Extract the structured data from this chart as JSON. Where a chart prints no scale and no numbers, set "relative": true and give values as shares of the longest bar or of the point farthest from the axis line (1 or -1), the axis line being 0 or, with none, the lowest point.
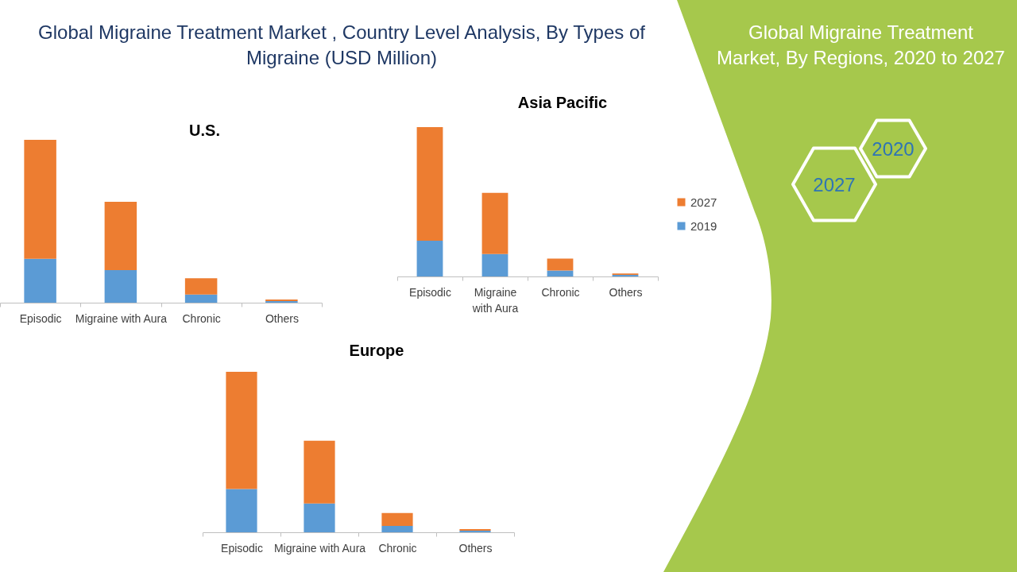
{
  "chart_data": [
    {
      "type": "other",
      "title": "Global Migraine Treatment Market , Country Level Analysis, By Types of Migraine (USD Million)"
    },
    {
      "type": "bar",
      "title": "U.S.",
      "categories": [
        "Episodic",
        "Migraine with Aura",
        "Chronic",
        "Others"
      ],
      "stacked": true,
      "relative": true,
      "series": [
        {
          "color": "#5b9bd5",
          "values": [
            0.27,
            0.2,
            0.05,
            0.01
          ]
        },
        {
          "color": "#ed7d31",
          "values": [
            0.73,
            0.42,
            0.1,
            0.01
          ]
        }
      ]
    },
    {
      "type": "bar",
      "title": "Asia Pacific",
      "categories": [
        "Episodic",
        "Migraine with Aura",
        "Chronic",
        "Others"
      ],
      "stacked": true,
      "relative": true,
      "legend": "right",
      "series": [
        {
          "name": "2019",
          "color": "#5b9bd5",
          "values": [
            0.24,
            0.15,
            0.04,
            0.01
          ]
        },
        {
          "name": "2027",
          "color": "#ed7d31",
          "values": [
            0.76,
            0.41,
            0.08,
            0.01
          ]
        }
      ]
    },
    {
      "type": "bar",
      "title": "Europe",
      "categories": [
        "Episodic",
        "Migraine with Aura",
        "Chronic",
        "Others"
      ],
      "stacked": true,
      "relative": true,
      "series": [
        {
          "color": "#5b9bd5",
          "values": [
            0.27,
            0.18,
            0.04,
            0.01
          ]
        },
        {
          "color": "#ed7d31",
          "values": [
            0.73,
            0.39,
            0.08,
            0.01
          ]
        }
      ]
    },
    {
      "type": "other",
      "title": "Global Migraine Treatment Market, By Regions, 2020 to 2027",
      "annotations": [
        "2020",
        "2027"
      ]
    }
  ]
}
